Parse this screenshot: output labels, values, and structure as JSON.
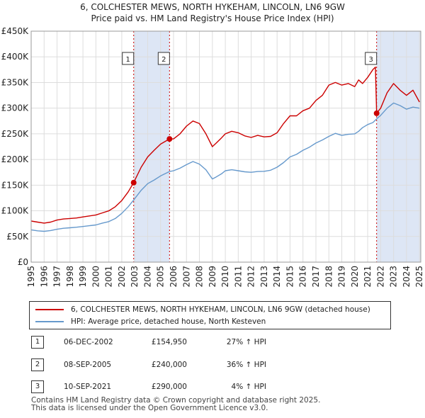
{
  "title": {
    "line1": "6, COLCHESTER MEWS, NORTH HYKEHAM, LINCOLN, LN6 9GW",
    "line2": "Price paid vs. HM Land Registry's House Price Index (HPI)"
  },
  "colors": {
    "property_line": "#cc0000",
    "hpi_line": "#6699cc",
    "shade": "#dde6f5",
    "grid": "#dddddd",
    "marker_dash": "#cc0000"
  },
  "chart_data": {
    "type": "line",
    "xlim": [
      1995,
      2025.1
    ],
    "ylim": [
      0,
      450000
    ],
    "x_ticks": [
      "1995",
      "1996",
      "1997",
      "1998",
      "1999",
      "2000",
      "2001",
      "2002",
      "2003",
      "2004",
      "2005",
      "2006",
      "2007",
      "2008",
      "2009",
      "2010",
      "2011",
      "2012",
      "2013",
      "2014",
      "2015",
      "2016",
      "2017",
      "2018",
      "2019",
      "2020",
      "2021",
      "2022",
      "2023",
      "2024",
      "2025"
    ],
    "y_ticks": [
      {
        "value": 0,
        "label": "£0"
      },
      {
        "value": 50000,
        "label": "£50K"
      },
      {
        "value": 100000,
        "label": "£100K"
      },
      {
        "value": 150000,
        "label": "£150K"
      },
      {
        "value": 200000,
        "label": "£200K"
      },
      {
        "value": 250000,
        "label": "£250K"
      },
      {
        "value": 300000,
        "label": "£300K"
      },
      {
        "value": 350000,
        "label": "£350K"
      },
      {
        "value": 400000,
        "label": "£400K"
      },
      {
        "value": 450000,
        "label": "£450K"
      }
    ],
    "grid": true,
    "shaded_ranges": [
      [
        2002.92,
        2005.69
      ],
      [
        2021.69,
        2025.1
      ]
    ],
    "series": [
      {
        "name": "6, COLCHESTER MEWS, NORTH HYKEHAM, LINCOLN, LN6 9GW (detached house)",
        "color": "#cc0000",
        "x": [
          1995.0,
          1995.5,
          1996.0,
          1996.5,
          1997.0,
          1997.5,
          1998.0,
          1998.5,
          1999.0,
          1999.5,
          2000.0,
          2000.5,
          2001.0,
          2001.5,
          2002.0,
          2002.5,
          2002.92,
          2003.5,
          2004.0,
          2004.5,
          2005.0,
          2005.69,
          2006.0,
          2006.5,
          2007.0,
          2007.5,
          2008.0,
          2008.5,
          2009.0,
          2009.3,
          2009.7,
          2010.0,
          2010.5,
          2011.0,
          2011.5,
          2012.0,
          2012.5,
          2013.0,
          2013.5,
          2014.0,
          2014.5,
          2015.0,
          2015.5,
          2016.0,
          2016.5,
          2017.0,
          2017.5,
          2018.0,
          2018.5,
          2019.0,
          2019.5,
          2020.0,
          2020.3,
          2020.6,
          2021.0,
          2021.4,
          2021.6,
          2021.69,
          2022.0,
          2022.5,
          2023.0,
          2023.5,
          2024.0,
          2024.5,
          2025.0
        ],
        "y": [
          80000,
          78000,
          76000,
          78000,
          82000,
          84000,
          85000,
          86000,
          88000,
          90000,
          92000,
          96000,
          100000,
          108000,
          120000,
          137000,
          154950,
          185000,
          205000,
          218000,
          230000,
          240000,
          240000,
          250000,
          265000,
          275000,
          270000,
          250000,
          225000,
          232000,
          242000,
          250000,
          255000,
          252000,
          246000,
          243000,
          247000,
          244000,
          245000,
          252000,
          270000,
          285000,
          285000,
          295000,
          300000,
          315000,
          325000,
          345000,
          350000,
          345000,
          348000,
          342000,
          355000,
          348000,
          360000,
          375000,
          380000,
          290000,
          300000,
          330000,
          348000,
          335000,
          325000,
          335000,
          312000
        ]
      },
      {
        "name": "HPI: Average price, detached house, North Kesteven",
        "color": "#6699cc",
        "x": [
          1995.0,
          1995.5,
          1996.0,
          1996.5,
          1997.0,
          1997.5,
          1998.0,
          1998.5,
          1999.0,
          1999.5,
          2000.0,
          2000.5,
          2001.0,
          2001.5,
          2002.0,
          2002.5,
          2002.92,
          2003.5,
          2004.0,
          2004.5,
          2005.0,
          2005.69,
          2006.0,
          2006.5,
          2007.0,
          2007.5,
          2008.0,
          2008.5,
          2009.0,
          2009.3,
          2009.7,
          2010.0,
          2010.5,
          2011.0,
          2011.5,
          2012.0,
          2012.5,
          2013.0,
          2013.5,
          2014.0,
          2014.5,
          2015.0,
          2015.5,
          2016.0,
          2016.5,
          2017.0,
          2017.5,
          2018.0,
          2018.5,
          2019.0,
          2019.5,
          2020.0,
          2020.3,
          2020.6,
          2021.0,
          2021.4,
          2021.69,
          2022.0,
          2022.5,
          2023.0,
          2023.5,
          2024.0,
          2024.5,
          2025.0
        ],
        "y": [
          63000,
          61000,
          60000,
          61500,
          64000,
          66000,
          67000,
          68000,
          69500,
          71000,
          72500,
          76000,
          79000,
          85000,
          95000,
          108000,
          121000,
          140000,
          153000,
          160000,
          168000,
          176500,
          178000,
          183000,
          190000,
          196000,
          191000,
          180000,
          162000,
          166000,
          172000,
          178000,
          180000,
          178000,
          176000,
          175000,
          176500,
          177000,
          179000,
          185000,
          194000,
          205000,
          210000,
          218000,
          224000,
          232000,
          238000,
          245000,
          251000,
          247000,
          249000,
          250000,
          255000,
          262000,
          268000,
          272000,
          279000,
          286000,
          300000,
          310000,
          305000,
          298000,
          302000,
          300000
        ]
      }
    ],
    "sales": [
      {
        "label": "1",
        "x": 2002.92,
        "y": 154950
      },
      {
        "label": "2",
        "x": 2005.69,
        "y": 240000
      },
      {
        "label": "3",
        "x": 2021.69,
        "y": 290000
      }
    ]
  },
  "legend": {
    "property": "6, COLCHESTER MEWS, NORTH HYKEHAM, LINCOLN, LN6 9GW (detached house)",
    "hpi": "HPI: Average price, detached house, North Kesteven"
  },
  "sales_table": [
    {
      "num": "1",
      "date": "06-DEC-2002",
      "price": "£154,950",
      "hpi": "27% ↑ HPI"
    },
    {
      "num": "2",
      "date": "08-SEP-2005",
      "price": "£240,000",
      "hpi": "36% ↑ HPI"
    },
    {
      "num": "3",
      "date": "10-SEP-2021",
      "price": "£290,000",
      "hpi": "4% ↑ HPI"
    }
  ],
  "footer": {
    "line1": "Contains HM Land Registry data © Crown copyright and database right 2025.",
    "line2": "This data is licensed under the Open Government Licence v3.0."
  }
}
